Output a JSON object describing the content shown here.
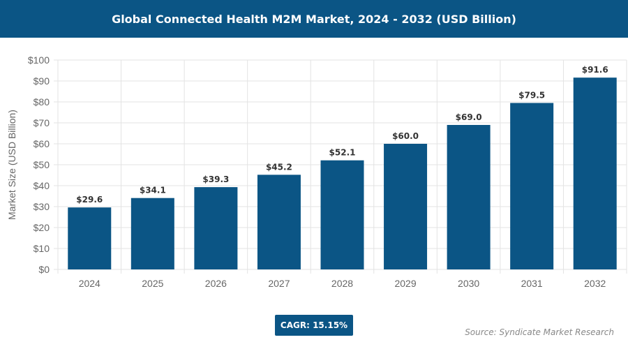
{
  "chart_data": {
    "type": "bar",
    "title": "Global Connected Health M2M Market, 2024 - 2032 (USD Billion)",
    "categories": [
      "2024",
      "2025",
      "2026",
      "2027",
      "2028",
      "2029",
      "2030",
      "2031",
      "2032"
    ],
    "values": [
      29.6,
      34.1,
      39.3,
      45.2,
      52.1,
      60.0,
      69.0,
      79.5,
      91.6
    ],
    "data_labels": [
      "$29.6",
      "$34.1",
      "$39.3",
      "$45.2",
      "$52.1",
      "$60.0",
      "$69.0",
      "$79.5",
      "$91.6"
    ],
    "ylabel": "Market Size (USD Billion)",
    "xlabel": "",
    "ylim": [
      0,
      100
    ],
    "yticks": [
      "$0",
      "$10",
      "$20",
      "$30",
      "$40",
      "$50",
      "$60",
      "$70",
      "$80",
      "$90",
      "$100"
    ],
    "grid": true,
    "bar_color": "#0b5585"
  },
  "cagr_label": "CAGR: 15.15%",
  "source": "Source: Syndicate Market Research"
}
